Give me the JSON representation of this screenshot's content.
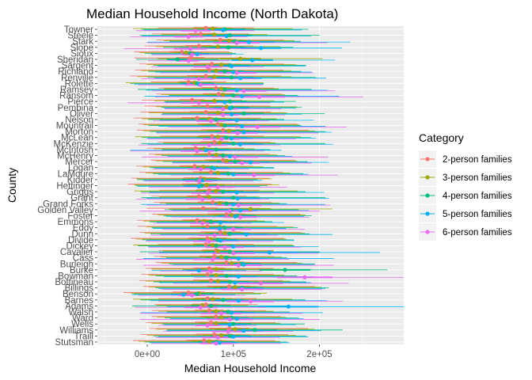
{
  "chart_data": {
    "type": "scatter",
    "title": "Median Household Income (North Dakota)",
    "xlabel": "Median Household Income",
    "ylabel": "County",
    "xlim": [
      -58000,
      298000
    ],
    "x_ticks": [
      0,
      100000,
      200000
    ],
    "x_tick_labels": [
      "0e+00",
      "1e+05",
      "2e+05"
    ],
    "grid": true,
    "legend_position": "right",
    "legend_title": "Category",
    "counties": [
      "Towner",
      "Steele",
      "Stark",
      "Slope",
      "Sioux",
      "Sheridan",
      "Sargent",
      "Richland",
      "Renville",
      "Rolette",
      "Ramsey",
      "Ransom",
      "Pierce",
      "Pembina",
      "Oliver",
      "Nelson",
      "Mountrail",
      "Morton",
      "McLean",
      "McKenzie",
      "McIntosh",
      "McHenry",
      "Mercer",
      "Logan",
      "LaMoure",
      "Kidder",
      "Hettinger",
      "Griggs",
      "Grant",
      "Grand Forks",
      "Golden Valley",
      "Foster",
      "Emmons",
      "Eddy",
      "Dunn",
      "Divide",
      "Dickey",
      "Cavalier",
      "Cass",
      "Burleigh",
      "Burke",
      "Bowman",
      "Bottineau",
      "Billings",
      "Benson",
      "Barnes",
      "Adams",
      "Walsh",
      "Ward",
      "Wells",
      "Williams",
      "Traill",
      "Stutsman"
    ],
    "series": [
      {
        "name": "2-person families",
        "color": "#F8766D",
        "values": [
          68000,
          62000,
          85000,
          60000,
          40000,
          50000,
          75000,
          72000,
          68000,
          48000,
          80000,
          83000,
          52000,
          70000,
          68000,
          58000,
          82000,
          88000,
          75000,
          78000,
          56000,
          72000,
          88000,
          55000,
          74000,
          62000,
          61000,
          72000,
          60000,
          76000,
          65000,
          92000,
          58000,
          70000,
          85000,
          70000,
          68000,
          80000,
          78000,
          92000,
          72000,
          70000,
          74000,
          95000,
          48000,
          70000,
          68000,
          72000,
          80000,
          74000,
          95000,
          78000,
          66000
        ]
      },
      {
        "name": "3-person families",
        "color": "#A3A500",
        "values": [
          76000,
          78000,
          95000,
          82000,
          45000,
          108000,
          86000,
          80000,
          78000,
          55000,
          86000,
          88000,
          78000,
          92000,
          82000,
          72000,
          86000,
          95000,
          82000,
          84000,
          66000,
          80000,
          92000,
          65000,
          82000,
          66000,
          69000,
          80000,
          72000,
          84000,
          120000,
          98000,
          66000,
          84000,
          90000,
          74000,
          76000,
          82000,
          86000,
          98000,
          80000,
          80000,
          82000,
          102000,
          60000,
          76000,
          64000,
          80000,
          86000,
          80000,
          102000,
          86000,
          72000
        ]
      },
      {
        "name": "4-person families",
        "color": "#00BF7D",
        "values": [
          90000,
          96000,
          102000,
          94000,
          50000,
          35000,
          96000,
          90000,
          98000,
          58000,
          90000,
          100000,
          96000,
          98000,
          112000,
          80000,
          90000,
          105000,
          92000,
          100000,
          80000,
          88000,
          102000,
          75000,
          94000,
          58000,
          63000,
          88000,
          100000,
          92000,
          98000,
          105000,
          74000,
          90000,
          96000,
          82000,
          80000,
          96000,
          92000,
          110000,
          160000,
          92000,
          96000,
          110000,
          58000,
          88000,
          74000,
          94000,
          98000,
          100000,
          125000,
          96000,
          80000
        ]
      },
      {
        "name": "5-person families",
        "color": "#00B0F6",
        "values": [
          88000,
          92000,
          118000,
          132000,
          58000,
          122000,
          98000,
          100000,
          108000,
          60000,
          104000,
          110000,
          90000,
          96000,
          98000,
          104000,
          110000,
          112000,
          98000,
          108000,
          68000,
          96000,
          120000,
          78000,
          100000,
          64000,
          60000,
          104000,
          105000,
          100000,
          108000,
          102000,
          85000,
          84000,
          115000,
          85000,
          100000,
          142000,
          106000,
          112000,
          60000,
          106000,
          102000,
          110000,
          42000,
          106000,
          164000,
          98000,
          104000,
          96000,
          112000,
          100000,
          84000
        ]
      },
      {
        "name": "6-person families",
        "color": "#E76BF3",
        "values": [
          56000,
          48000,
          104000,
          50000,
          52000,
          48000,
          70000,
          104000,
          60000,
          62000,
          112000,
          130000,
          60000,
          88000,
          88000,
          74000,
          128000,
          105000,
          86000,
          72000,
          58000,
          102000,
          110000,
          62000,
          124000,
          60000,
          82000,
          70000,
          64000,
          106000,
          96000,
          108000,
          64000,
          100000,
          78000,
          72000,
          90000,
          100000,
          76000,
          106000,
          74000,
          183000,
          132000,
          110000,
          52000,
          120000,
          62000,
          86000,
          96000,
          70000,
          94000,
          82000,
          80000
        ]
      }
    ]
  },
  "legend": {
    "title": "Category",
    "items": [
      "2-person families",
      "3-person families",
      "4-person families",
      "5-person families",
      "6-person families"
    ]
  }
}
